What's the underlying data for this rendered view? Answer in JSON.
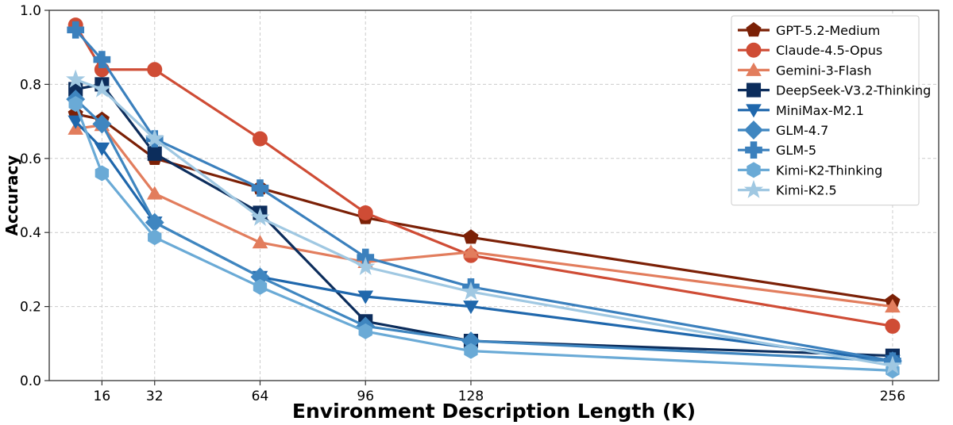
{
  "chart_data": {
    "type": "line",
    "title": "",
    "xlabel": "Environment Description Length (K)",
    "ylabel": "Accuracy",
    "xlim": [
      0,
      270
    ],
    "ylim": [
      0.0,
      1.0
    ],
    "x_ticks": [
      16,
      32,
      64,
      96,
      128,
      256
    ],
    "y_ticks": [
      0.0,
      0.2,
      0.4,
      0.6,
      0.8,
      1.0
    ],
    "x_tick_labels": [
      "16",
      "32",
      "64",
      "96",
      "128",
      "256"
    ],
    "y_tick_labels": [
      "0.0",
      "0.2",
      "0.4",
      "0.6",
      "0.8",
      "1.0"
    ],
    "grid": true,
    "legend_position": "top-right",
    "x": [
      8,
      16,
      32,
      64,
      96,
      128,
      256
    ],
    "series": [
      {
        "name": "GPT-5.2-Medium",
        "marker": "pentagon",
        "color": "#7b2006",
        "values": [
          0.72,
          0.705,
          0.6,
          0.52,
          0.44,
          0.387,
          0.213
        ]
      },
      {
        "name": "Claude-4.5-Opus",
        "marker": "circle",
        "color": "#cf4c35",
        "values": [
          0.96,
          0.84,
          0.84,
          0.653,
          0.453,
          0.338,
          0.147
        ]
      },
      {
        "name": "Gemini-3-Flash",
        "marker": "triangle-up",
        "color": "#e27d5d",
        "values": [
          0.68,
          0.69,
          0.505,
          0.373,
          0.32,
          0.347,
          0.2
        ]
      },
      {
        "name": "DeepSeek-V3.2-Thinking",
        "marker": "square",
        "color": "#0c2d5c",
        "values": [
          0.787,
          0.8,
          0.613,
          0.453,
          0.16,
          0.107,
          0.067
        ]
      },
      {
        "name": "MiniMax-M2.1",
        "marker": "triangle-down",
        "color": "#1f67ac",
        "values": [
          0.7,
          0.627,
          0.427,
          0.28,
          0.227,
          0.2,
          0.053
        ]
      },
      {
        "name": "GLM-4.7",
        "marker": "diamond",
        "color": "#3f86c0",
        "values": [
          0.76,
          0.693,
          0.427,
          0.28,
          0.147,
          0.107,
          0.053
        ]
      },
      {
        "name": "GLM-5",
        "marker": "plus",
        "color": "#3b80bd",
        "values": [
          0.947,
          0.867,
          0.653,
          0.52,
          0.333,
          0.253,
          0.053
        ]
      },
      {
        "name": "Kimi-K2-Thinking",
        "marker": "hexagon",
        "color": "#6aaad6",
        "values": [
          0.747,
          0.56,
          0.387,
          0.253,
          0.133,
          0.08,
          0.027
        ]
      },
      {
        "name": "Kimi-K2.5",
        "marker": "star",
        "color": "#a0c8e2",
        "values": [
          0.813,
          0.787,
          0.653,
          0.44,
          0.307,
          0.24,
          0.04
        ]
      }
    ]
  }
}
